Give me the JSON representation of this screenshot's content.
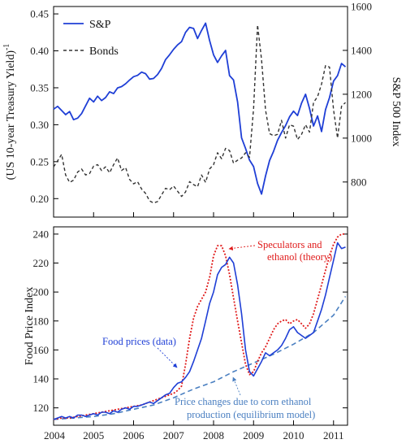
{
  "chart_data": [
    {
      "type": "line",
      "left_axis": {
        "label": "(US 10-year Treasury Yield)",
        "label_superscript": "-1",
        "ylim": [
          0.175,
          0.46
        ],
        "ticks": [
          0.2,
          0.25,
          0.3,
          0.35,
          0.4,
          0.45
        ],
        "tick_labels": [
          "0.20",
          "0.25",
          "0.30",
          "0.35",
          "0.40",
          "0.45"
        ]
      },
      "right_axis": {
        "label": "S&P 500 Index",
        "ylim": [
          640,
          1600
        ],
        "ticks": [
          800,
          1000,
          1200,
          1400,
          1600
        ],
        "tick_labels": [
          "800",
          "1000",
          "1200",
          "1400",
          "1600"
        ]
      },
      "xlim": [
        2004.0,
        2011.35
      ],
      "legend": {
        "placement": "top-left"
      },
      "series": [
        {
          "name": "S&P",
          "axis": "right",
          "color": "#1f3fd6",
          "style": "solid",
          "x": [
            2004.0,
            2004.1,
            2004.2,
            2004.3,
            2004.4,
            2004.5,
            2004.6,
            2004.7,
            2004.8,
            2004.9,
            2005.0,
            2005.1,
            2005.2,
            2005.3,
            2005.4,
            2005.5,
            2005.6,
            2005.7,
            2005.8,
            2005.9,
            2006.0,
            2006.1,
            2006.2,
            2006.3,
            2006.4,
            2006.5,
            2006.6,
            2006.7,
            2006.8,
            2006.9,
            2007.0,
            2007.1,
            2007.2,
            2007.3,
            2007.4,
            2007.5,
            2007.6,
            2007.7,
            2007.8,
            2007.9,
            2008.0,
            2008.1,
            2008.2,
            2008.3,
            2008.4,
            2008.5,
            2008.6,
            2008.7,
            2008.8,
            2008.9,
            2009.0,
            2009.1,
            2009.2,
            2009.3,
            2009.4,
            2009.5,
            2009.6,
            2009.7,
            2009.8,
            2009.9,
            2010.0,
            2010.1,
            2010.2,
            2010.3,
            2010.4,
            2010.5,
            2010.6,
            2010.7,
            2010.8,
            2010.9,
            2011.0,
            2011.1,
            2011.2,
            2011.3
          ],
          "values": [
            1132,
            1145,
            1126,
            1107,
            1121,
            1084,
            1091,
            1112,
            1147,
            1182,
            1165,
            1191,
            1171,
            1185,
            1211,
            1203,
            1229,
            1235,
            1248,
            1265,
            1280,
            1286,
            1301,
            1294,
            1269,
            1272,
            1290,
            1318,
            1358,
            1380,
            1405,
            1425,
            1440,
            1482,
            1505,
            1500,
            1454,
            1491,
            1524,
            1445,
            1380,
            1345,
            1375,
            1400,
            1285,
            1265,
            1165,
            1001,
            953,
            900,
            870,
            793,
            745,
            827,
            898,
            940,
            990,
            1025,
            1057,
            1097,
            1123,
            1103,
            1160,
            1200,
            1135,
            1055,
            1101,
            1030,
            1130,
            1185,
            1260,
            1285,
            1340,
            1325
          ]
        },
        {
          "name": "Bonds",
          "axis": "left",
          "color": "#333333",
          "style": "dashed",
          "x": [
            2004.0,
            2004.1,
            2004.2,
            2004.3,
            2004.4,
            2004.5,
            2004.6,
            2004.7,
            2004.8,
            2004.9,
            2005.0,
            2005.1,
            2005.2,
            2005.3,
            2005.4,
            2005.5,
            2005.6,
            2005.7,
            2005.8,
            2005.9,
            2006.0,
            2006.1,
            2006.2,
            2006.3,
            2006.4,
            2006.5,
            2006.6,
            2006.7,
            2006.8,
            2006.9,
            2007.0,
            2007.1,
            2007.2,
            2007.3,
            2007.4,
            2007.5,
            2007.6,
            2007.7,
            2007.8,
            2007.9,
            2008.0,
            2008.1,
            2008.2,
            2008.3,
            2008.4,
            2008.5,
            2008.6,
            2008.7,
            2008.8,
            2008.9,
            2009.0,
            2009.1,
            2009.2,
            2009.3,
            2009.4,
            2009.5,
            2009.6,
            2009.7,
            2009.8,
            2009.9,
            2010.0,
            2010.1,
            2010.2,
            2010.3,
            2010.4,
            2010.5,
            2010.6,
            2010.7,
            2010.8,
            2010.9,
            2011.0,
            2011.1,
            2011.2,
            2011.3
          ],
          "values": [
            0.243,
            0.251,
            0.26,
            0.232,
            0.222,
            0.225,
            0.236,
            0.24,
            0.232,
            0.234,
            0.244,
            0.246,
            0.238,
            0.243,
            0.235,
            0.246,
            0.255,
            0.238,
            0.242,
            0.226,
            0.22,
            0.223,
            0.213,
            0.207,
            0.197,
            0.194,
            0.196,
            0.205,
            0.214,
            0.212,
            0.217,
            0.21,
            0.203,
            0.209,
            0.223,
            0.219,
            0.216,
            0.232,
            0.222,
            0.24,
            0.246,
            0.262,
            0.254,
            0.268,
            0.265,
            0.248,
            0.252,
            0.255,
            0.262,
            0.256,
            0.322,
            0.435,
            0.388,
            0.32,
            0.288,
            0.285,
            0.287,
            0.306,
            0.282,
            0.3,
            0.298,
            0.28,
            0.287,
            0.3,
            0.29,
            0.33,
            0.338,
            0.355,
            0.38,
            0.378,
            0.32,
            0.282,
            0.325,
            0.33
          ]
        }
      ]
    },
    {
      "type": "line",
      "ylabel": "Food Price Index",
      "ylim": [
        108,
        245
      ],
      "yticks": [
        120,
        140,
        160,
        180,
        200,
        220,
        240
      ],
      "xlim": [
        2004.0,
        2011.35
      ],
      "xticks": [
        2004,
        2005,
        2006,
        2007,
        2008,
        2009,
        2010,
        2011
      ],
      "xtick_labels": [
        "2004",
        "2005",
        "2006",
        "2007",
        "2008",
        "2009",
        "2010",
        "2011"
      ],
      "series": [
        {
          "name": "Food prices (data)",
          "color": "#1f3fd6",
          "style": "solid",
          "x": [
            2004.0,
            2004.1,
            2004.2,
            2004.3,
            2004.4,
            2004.5,
            2004.6,
            2004.7,
            2004.8,
            2004.9,
            2005.0,
            2005.1,
            2005.2,
            2005.3,
            2005.4,
            2005.5,
            2005.6,
            2005.7,
            2005.8,
            2005.9,
            2006.0,
            2006.1,
            2006.2,
            2006.3,
            2006.4,
            2006.5,
            2006.6,
            2006.7,
            2006.8,
            2006.9,
            2007.0,
            2007.1,
            2007.2,
            2007.3,
            2007.4,
            2007.5,
            2007.6,
            2007.7,
            2007.8,
            2007.9,
            2008.0,
            2008.1,
            2008.2,
            2008.3,
            2008.4,
            2008.5,
            2008.6,
            2008.7,
            2008.8,
            2008.9,
            2009.0,
            2009.1,
            2009.2,
            2009.3,
            2009.4,
            2009.5,
            2009.6,
            2009.7,
            2009.8,
            2009.9,
            2010.0,
            2010.1,
            2010.2,
            2010.3,
            2010.4,
            2010.5,
            2010.6,
            2010.7,
            2010.8,
            2010.9,
            2011.0,
            2011.1,
            2011.2,
            2011.3
          ],
          "values": [
            112,
            113,
            114,
            113,
            114,
            113,
            115,
            115,
            114,
            115,
            116,
            115,
            117,
            117,
            116,
            118,
            117,
            119,
            120,
            119,
            121,
            121,
            122,
            123,
            124,
            123,
            125,
            127,
            129,
            130,
            134,
            137,
            138,
            141,
            145,
            152,
            160,
            168,
            180,
            192,
            200,
            212,
            217,
            219,
            224,
            220,
            205,
            185,
            160,
            145,
            142,
            147,
            152,
            158,
            156,
            158,
            160,
            163,
            168,
            174,
            176,
            172,
            170,
            168,
            170,
            172,
            180,
            188,
            198,
            210,
            222,
            234,
            230,
            231
          ]
        },
        {
          "name": "Speculators and ethanol (theory)",
          "color": "#e01b1b",
          "style": "dotted",
          "x": [
            2004.0,
            2004.2,
            2004.4,
            2004.6,
            2004.8,
            2005.0,
            2005.2,
            2005.4,
            2005.6,
            2005.8,
            2006.0,
            2006.2,
            2006.4,
            2006.6,
            2006.8,
            2007.0,
            2007.1,
            2007.2,
            2007.3,
            2007.4,
            2007.5,
            2007.6,
            2007.7,
            2007.8,
            2007.9,
            2008.0,
            2008.1,
            2008.2,
            2008.3,
            2008.4,
            2008.5,
            2008.6,
            2008.7,
            2008.8,
            2008.9,
            2009.0,
            2009.1,
            2009.2,
            2009.3,
            2009.4,
            2009.5,
            2009.6,
            2009.7,
            2009.8,
            2009.9,
            2010.0,
            2010.1,
            2010.2,
            2010.3,
            2010.4,
            2010.5,
            2010.6,
            2010.7,
            2010.8,
            2010.9,
            2011.0,
            2011.1,
            2011.2,
            2011.3
          ],
          "values": [
            112,
            113,
            113,
            114,
            115,
            116,
            117,
            118,
            119,
            120,
            121,
            122,
            124,
            126,
            128,
            130,
            132,
            135,
            150,
            168,
            182,
            190,
            195,
            200,
            210,
            225,
            232,
            232,
            225,
            212,
            196,
            180,
            165,
            150,
            143,
            145,
            152,
            158,
            162,
            168,
            174,
            178,
            180,
            181,
            178,
            180,
            181,
            178,
            175,
            178,
            185,
            195,
            205,
            215,
            225,
            233,
            238,
            240,
            240
          ]
        },
        {
          "name": "Price changes due to corn ethanol production (equilibrium model)",
          "color": "#4a7fc1",
          "style": "dashed",
          "x": [
            2004.0,
            2004.5,
            2005.0,
            2005.5,
            2006.0,
            2006.5,
            2007.0,
            2007.5,
            2008.0,
            2008.5,
            2009.0,
            2009.5,
            2010.0,
            2010.5,
            2011.0,
            2011.3
          ],
          "values": [
            112,
            113,
            114,
            116,
            119,
            122,
            127,
            133,
            138,
            145,
            151,
            157,
            164,
            172,
            184,
            197
          ]
        }
      ],
      "annotations": [
        {
          "text": "Food prices (data)",
          "color": "#1f3fd6"
        },
        {
          "text": "Speculators and",
          "text2": "ethanol (theory)",
          "color": "#e01b1b"
        },
        {
          "text": "Price changes due to corn ethanol",
          "text2": "production (equilibrium model)",
          "color": "#4a7fc1"
        }
      ]
    }
  ]
}
